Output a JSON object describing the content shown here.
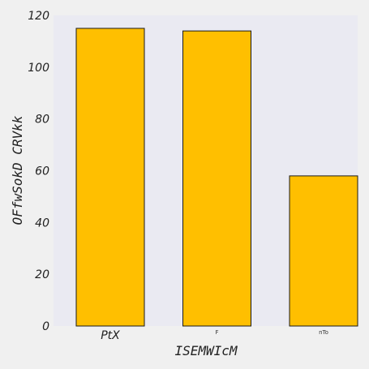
{
  "chart_data": {
    "type": "bar",
    "categories": [
      "PtX",
      "F",
      "nTo"
    ],
    "values": [
      115,
      114,
      58
    ],
    "xlabel": "ISEMWIcM",
    "ylabel": "OFfwSokD CRVkk",
    "ylim": [
      0,
      120
    ],
    "yticks": [
      "0",
      "20",
      "40",
      "60",
      "80",
      "100",
      "120"
    ],
    "grid": false,
    "colors": {
      "bar_fill": "#FFBF00",
      "bar_edge": "#1a1a1a",
      "plot_bg": "#EAEAF2",
      "page_bg": "#F0F0F0"
    }
  }
}
